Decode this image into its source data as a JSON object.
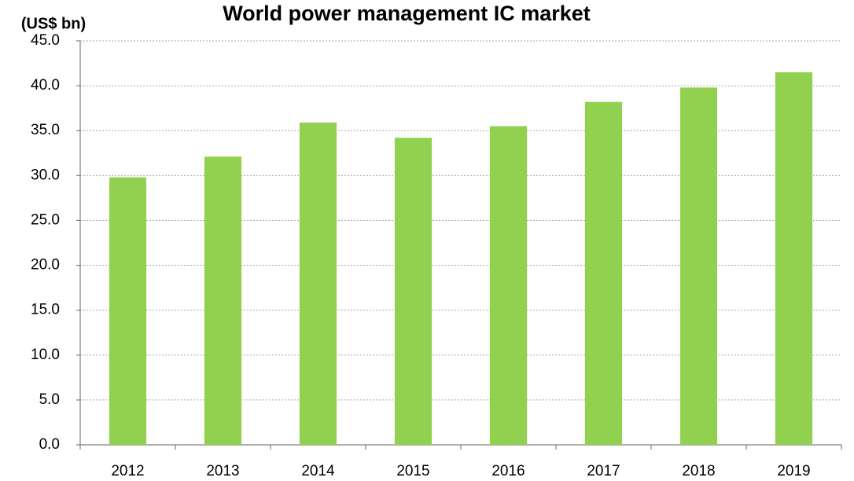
{
  "chart_data": {
    "type": "bar",
    "title": "World power management IC market",
    "y_label": "(US$ bn)",
    "categories": [
      "2012",
      "2013",
      "2014",
      "2015",
      "2016",
      "2017",
      "2018",
      "2019"
    ],
    "values": [
      29.8,
      32.1,
      35.9,
      34.2,
      35.5,
      38.2,
      39.8,
      41.5
    ],
    "color": "#92d050",
    "ylim": [
      0,
      45
    ],
    "yticks": [
      {
        "value": 0,
        "label": "0.0"
      },
      {
        "value": 5,
        "label": "5.0"
      },
      {
        "value": 10,
        "label": "10.0"
      },
      {
        "value": 15,
        "label": "15.0"
      },
      {
        "value": 20,
        "label": "20.0"
      },
      {
        "value": 25,
        "label": "25.0"
      },
      {
        "value": 30,
        "label": "30.0"
      },
      {
        "value": 35,
        "label": "35.0"
      },
      {
        "value": 40,
        "label": "40.0"
      },
      {
        "value": 45,
        "label": "45.0"
      }
    ],
    "grid": true
  }
}
